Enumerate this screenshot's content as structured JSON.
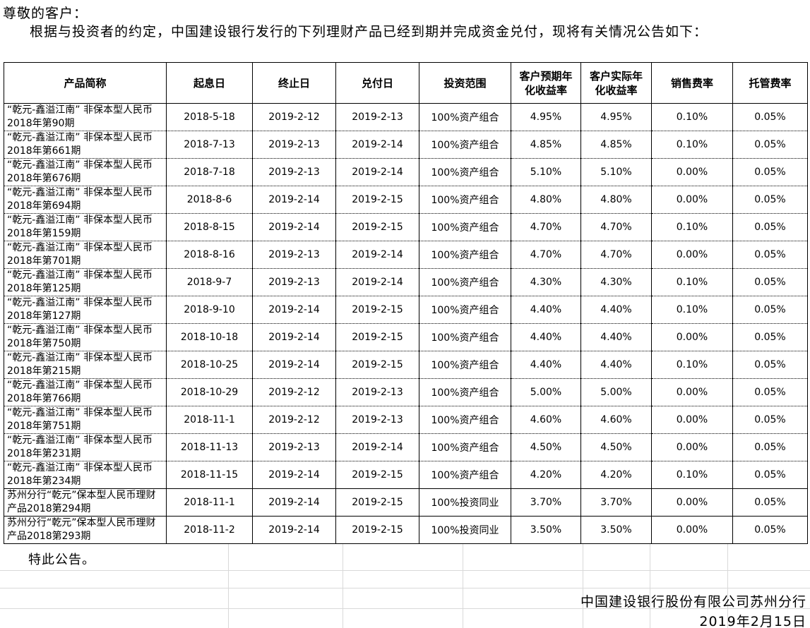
{
  "intro": {
    "salutation": "尊敬的客户：",
    "body": "根据与投资者的约定，中国建设银行发行的下列理财产品已经到期并完成资金兑付，现将有关情况公告如下："
  },
  "table": {
    "columns": [
      {
        "key": "name",
        "label": "产品简称"
      },
      {
        "key": "start",
        "label": "起息日"
      },
      {
        "key": "end",
        "label": "终止日"
      },
      {
        "key": "pay",
        "label": "兑付日"
      },
      {
        "key": "scope",
        "label": "投资范围"
      },
      {
        "key": "expected",
        "label": "客户预期年化收益率"
      },
      {
        "key": "actual",
        "label": "客户实际年化收益率"
      },
      {
        "key": "sales_fee",
        "label": "销售费率"
      },
      {
        "key": "custody_fee",
        "label": "托管费率"
      }
    ],
    "rows": [
      {
        "name": "“乾元-鑫溢江南” 非保本型人民币2018年第90期",
        "start": "2018-5-18",
        "end": "2019-2-12",
        "pay": "2019-2-13",
        "scope": "100%资产组合",
        "expected": "4.95%",
        "actual": "4.95%",
        "sales_fee": "0.10%",
        "custody_fee": "0.05%"
      },
      {
        "name": "“乾元-鑫溢江南” 非保本型人民币2018年第661期",
        "start": "2018-7-13",
        "end": "2019-2-13",
        "pay": "2019-2-14",
        "scope": "100%资产组合",
        "expected": "4.85%",
        "actual": "4.85%",
        "sales_fee": "0.10%",
        "custody_fee": "0.05%"
      },
      {
        "name": "“乾元-鑫溢江南” 非保本型人民币2018年第676期",
        "start": "2018-7-18",
        "end": "2019-2-13",
        "pay": "2019-2-14",
        "scope": "100%资产组合",
        "expected": "5.10%",
        "actual": "5.10%",
        "sales_fee": "0.00%",
        "custody_fee": "0.05%"
      },
      {
        "name": "“乾元-鑫溢江南” 非保本型人民币2018年第694期",
        "start": "2018-8-6",
        "end": "2019-2-14",
        "pay": "2019-2-15",
        "scope": "100%资产组合",
        "expected": "4.80%",
        "actual": "4.80%",
        "sales_fee": "0.00%",
        "custody_fee": "0.05%"
      },
      {
        "name": "“乾元-鑫溢江南” 非保本型人民币2018年第159期",
        "start": "2018-8-15",
        "end": "2019-2-14",
        "pay": "2019-2-15",
        "scope": "100%资产组合",
        "expected": "4.70%",
        "actual": "4.70%",
        "sales_fee": "0.10%",
        "custody_fee": "0.05%"
      },
      {
        "name": "“乾元-鑫溢江南” 非保本型人民币2018年第701期",
        "start": "2018-8-16",
        "end": "2019-2-13",
        "pay": "2019-2-14",
        "scope": "100%资产组合",
        "expected": "4.70%",
        "actual": "4.70%",
        "sales_fee": "0.00%",
        "custody_fee": "0.05%"
      },
      {
        "name": "“乾元-鑫溢江南” 非保本型人民币2018年第125期",
        "start": "2018-9-7",
        "end": "2019-2-13",
        "pay": "2019-2-14",
        "scope": "100%资产组合",
        "expected": "4.30%",
        "actual": "4.30%",
        "sales_fee": "0.10%",
        "custody_fee": "0.05%"
      },
      {
        "name": "“乾元-鑫溢江南” 非保本型人民币2018年第127期",
        "start": "2018-9-10",
        "end": "2019-2-14",
        "pay": "2019-2-15",
        "scope": "100%资产组合",
        "expected": "4.40%",
        "actual": "4.40%",
        "sales_fee": "0.10%",
        "custody_fee": "0.05%"
      },
      {
        "name": "“乾元-鑫溢江南” 非保本型人民币2018年第750期",
        "start": "2018-10-18",
        "end": "2019-2-14",
        "pay": "2019-2-15",
        "scope": "100%资产组合",
        "expected": "4.40%",
        "actual": "4.40%",
        "sales_fee": "0.00%",
        "custody_fee": "0.05%"
      },
      {
        "name": "“乾元-鑫溢江南” 非保本型人民币2018年第215期",
        "start": "2018-10-25",
        "end": "2019-2-14",
        "pay": "2019-2-15",
        "scope": "100%资产组合",
        "expected": "4.40%",
        "actual": "4.40%",
        "sales_fee": "0.10%",
        "custody_fee": "0.05%"
      },
      {
        "name": "“乾元-鑫溢江南” 非保本型人民币2018年第766期",
        "start": "2018-10-29",
        "end": "2019-2-12",
        "pay": "2019-2-13",
        "scope": "100%资产组合",
        "expected": "5.00%",
        "actual": "5.00%",
        "sales_fee": "0.00%",
        "custody_fee": "0.05%"
      },
      {
        "name": "“乾元-鑫溢江南” 非保本型人民币2018年第751期",
        "start": "2018-11-1",
        "end": "2019-2-12",
        "pay": "2019-2-13",
        "scope": "100%资产组合",
        "expected": "4.60%",
        "actual": "4.60%",
        "sales_fee": "0.00%",
        "custody_fee": "0.05%"
      },
      {
        "name": "“乾元-鑫溢江南” 非保本型人民币2018年第231期",
        "start": "2018-11-13",
        "end": "2019-2-13",
        "pay": "2019-2-14",
        "scope": "100%资产组合",
        "expected": "4.50%",
        "actual": "4.50%",
        "sales_fee": "0.00%",
        "custody_fee": "0.05%"
      },
      {
        "name": "“乾元-鑫溢江南” 非保本型人民币2018年第234期",
        "start": "2018-11-15",
        "end": "2019-2-14",
        "pay": "2019-2-15",
        "scope": "100%资产组合",
        "expected": "4.20%",
        "actual": "4.20%",
        "sales_fee": "0.10%",
        "custody_fee": "0.05%"
      },
      {
        "name": "苏州分行“乾元”保本型人民币理财产品2018第294期",
        "start": "2018-11-1",
        "end": "2019-2-14",
        "pay": "2019-2-15",
        "scope": "100%投资同业",
        "expected": "3.70%",
        "actual": "3.70%",
        "sales_fee": "0.00%",
        "custody_fee": "0.05%"
      },
      {
        "name": "苏州分行“乾元”保本型人民币理财产品2018第293期",
        "start": "2018-11-2",
        "end": "2019-2-14",
        "pay": "2019-2-15",
        "scope": "100%投资同业",
        "expected": "3.50%",
        "actual": "3.50%",
        "sales_fee": "0.00%",
        "custody_fee": "0.05%"
      }
    ]
  },
  "footer": {
    "closing": "特此公告。",
    "issuer": "中国建设银行股份有限公司苏州分行",
    "date": "2019年2月15日"
  },
  "colors": {
    "text": "#000000",
    "table_border": "#000000",
    "faint_grid": "#d9d9d9",
    "background": "#ffffff"
  }
}
